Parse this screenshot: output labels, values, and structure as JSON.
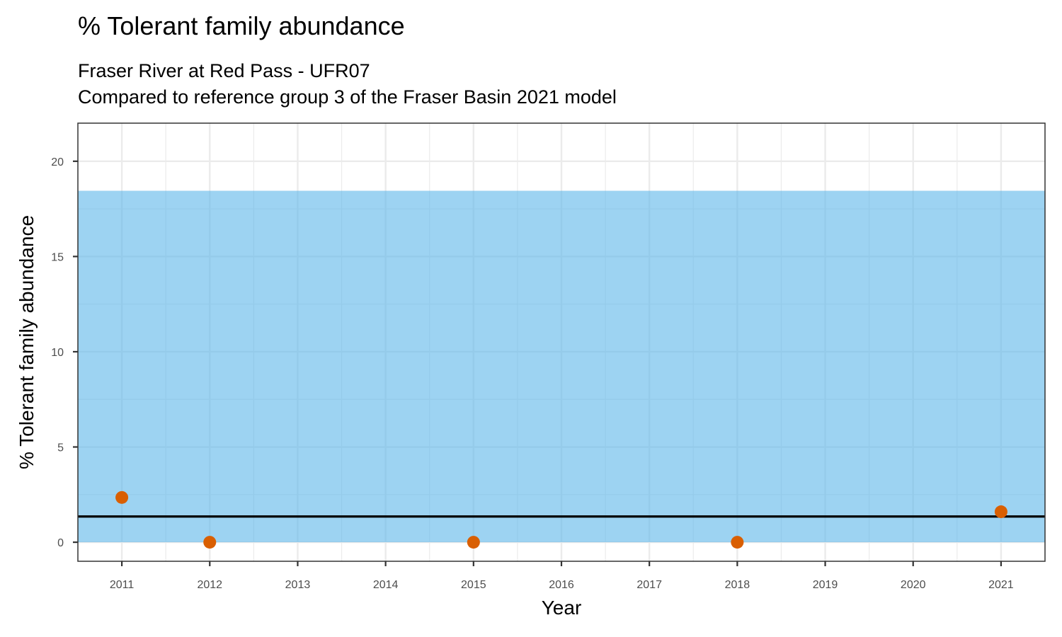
{
  "chart_data": {
    "type": "scatter",
    "title": "% Tolerant family abundance",
    "subtitle": [
      "Fraser River at Red Pass - UFR07",
      "Compared to reference group 3 of the Fraser Basin 2021 model"
    ],
    "xlabel": "Year",
    "ylabel": "% Tolerant family abundance",
    "x_ticks": [
      2011,
      2012,
      2013,
      2014,
      2015,
      2016,
      2017,
      2018,
      2019,
      2020,
      2021
    ],
    "y_ticks": [
      0,
      5,
      10,
      15,
      20
    ],
    "xlim": [
      2010.5,
      2021.5
    ],
    "ylim": [
      -1,
      22
    ],
    "grid": true,
    "points": [
      {
        "x": 2011,
        "y": 2.35
      },
      {
        "x": 2012,
        "y": 0
      },
      {
        "x": 2015,
        "y": 0
      },
      {
        "x": 2018,
        "y": 0
      },
      {
        "x": 2021,
        "y": 1.6
      }
    ],
    "reference_band": {
      "ymin": 0,
      "ymax": 18.45
    },
    "reference_line": {
      "y": 1.35
    },
    "colors": {
      "point": "#d95f02",
      "band": "#56b4e9",
      "line": "#000000",
      "grid": "#ebebeb",
      "border": "#333333"
    }
  }
}
